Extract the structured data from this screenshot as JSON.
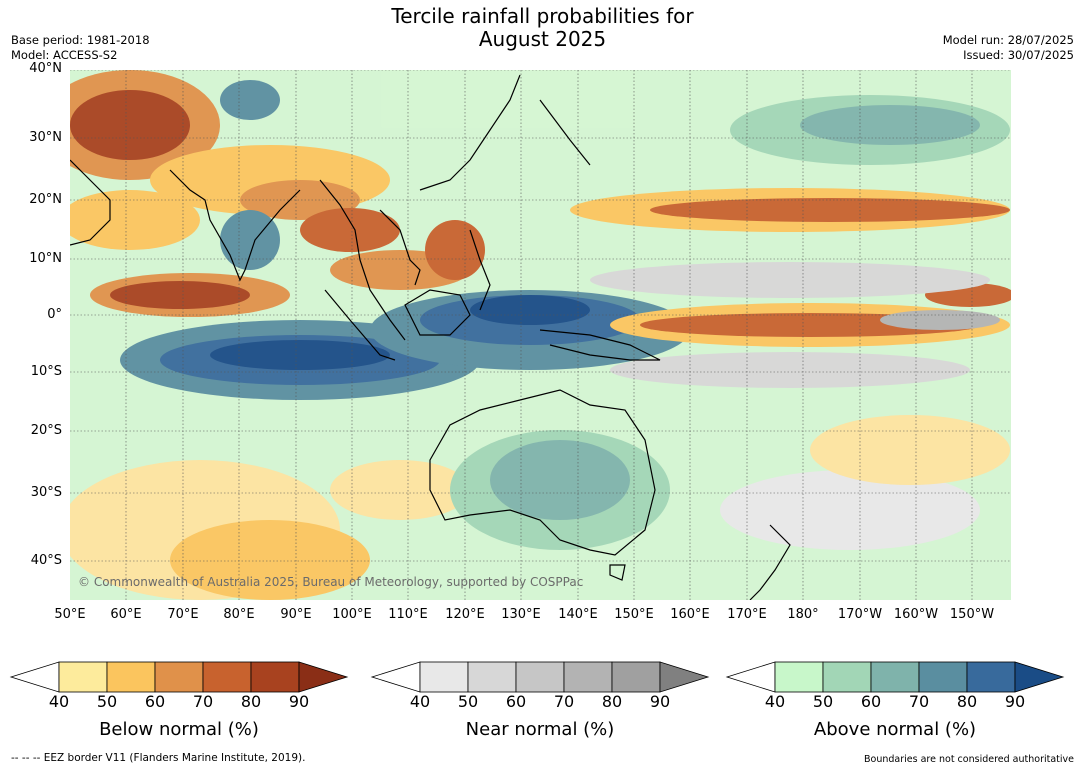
{
  "title": "Tercile rainfall probabilities for\nAugust 2025",
  "title_line1": "Tercile rainfall probabilities for",
  "title_line2": "August 2025",
  "meta_left": [
    "Base period: 1981-2018",
    "Model: ACCESS-S2"
  ],
  "meta_right": [
    "Model run: 28/07/2025",
    "Issued: 30/07/2025"
  ],
  "lat_labels": [
    "40°N",
    "30°N",
    "20°N",
    "10°N",
    "0°",
    "10°S",
    "20°S",
    "30°S",
    "40°S"
  ],
  "lon_labels": [
    "50°E",
    "60°E",
    "70°E",
    "80°E",
    "90°E",
    "100°E",
    "110°E",
    "120°E",
    "130°E",
    "140°E",
    "150°E",
    "160°E",
    "170°E",
    "180°",
    "170°W",
    "160°W",
    "150°W"
  ],
  "copyright": "© Commonwealth of Australia 2025, Bureau of Meteorology, supported by COSPPac",
  "colorbars": [
    {
      "title": "Below normal (%)",
      "ticks": [
        "40",
        "50",
        "60",
        "70",
        "80",
        "90"
      ],
      "colors": [
        "#ffffff",
        "#fdeb9c",
        "#fbc55e",
        "#e0914a",
        "#c8622e",
        "#a8421f",
        "#8a2e16"
      ]
    },
    {
      "title": "Near normal (%)",
      "ticks": [
        "40",
        "50",
        "60",
        "70",
        "80",
        "90"
      ],
      "colors": [
        "#ffffff",
        "#e8e8e8",
        "#d7d7d7",
        "#c6c6c6",
        "#b3b3b3",
        "#a0a0a0",
        "#808080"
      ]
    },
    {
      "title": "Above normal (%)",
      "ticks": [
        "40",
        "50",
        "60",
        "70",
        "80",
        "90"
      ],
      "colors": [
        "#ffffff",
        "#c8f7ca",
        "#a2d6b6",
        "#7fb3ab",
        "#5a8ea0",
        "#386a9c",
        "#1a4c86"
      ]
    }
  ],
  "footer_left": "--  --  -- EEZ border V11 (Flanders Marine Institute, 2019).",
  "footer_right": "Boundaries are not considered authoritative"
}
